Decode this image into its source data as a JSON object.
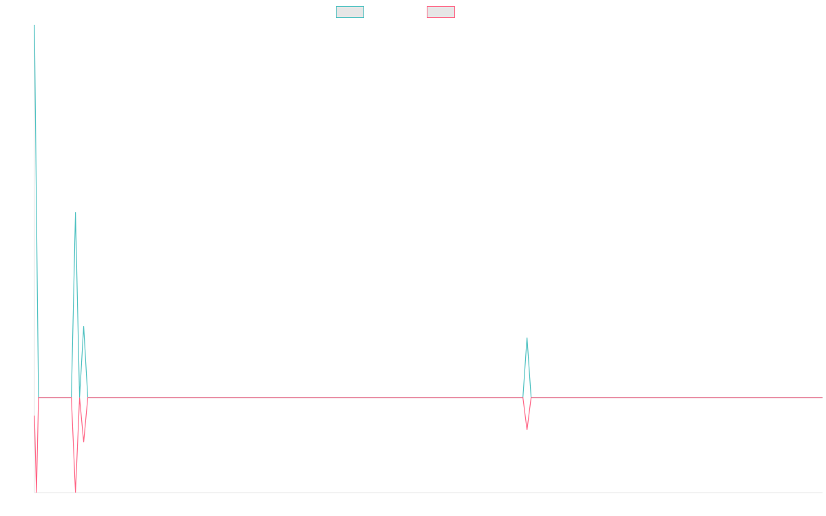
{
  "colors": {
    "series_a": "#4bc0c0",
    "series_b": "#ff6384",
    "legend_fill": "#e6e6e6",
    "axis": "#e5e5e5",
    "background": "#ffffff"
  },
  "chart_data": {
    "type": "line",
    "title": "",
    "xlabel": "",
    "ylabel": "",
    "legend": "top-center",
    "grid": false,
    "x_tick_labels_visible": false,
    "y_tick_labels_visible": false,
    "xlim": [
      0,
      192
    ],
    "ylim": [
      -1.0,
      3.92
    ],
    "series": [
      {
        "legend_text": "",
        "color": "#4bc0c0",
        "points": [
          [
            0,
            3.92
          ],
          [
            1,
            0
          ],
          [
            9,
            0
          ],
          [
            10,
            1.95
          ],
          [
            11,
            0
          ],
          [
            12,
            0.75
          ],
          [
            13,
            0
          ],
          [
            119,
            0
          ],
          [
            120,
            0.63
          ],
          [
            121,
            0
          ],
          [
            192,
            0
          ]
        ]
      },
      {
        "legend_text": "",
        "color": "#ff6384",
        "points": [
          [
            0,
            -0.19
          ],
          [
            0.5,
            -1.0
          ],
          [
            1,
            0
          ],
          [
            9,
            0
          ],
          [
            10,
            -1.0
          ],
          [
            11,
            0
          ],
          [
            12,
            -0.47
          ],
          [
            13,
            0
          ],
          [
            119,
            0
          ],
          [
            120,
            -0.34
          ],
          [
            121,
            0
          ],
          [
            192,
            0
          ]
        ]
      }
    ]
  }
}
